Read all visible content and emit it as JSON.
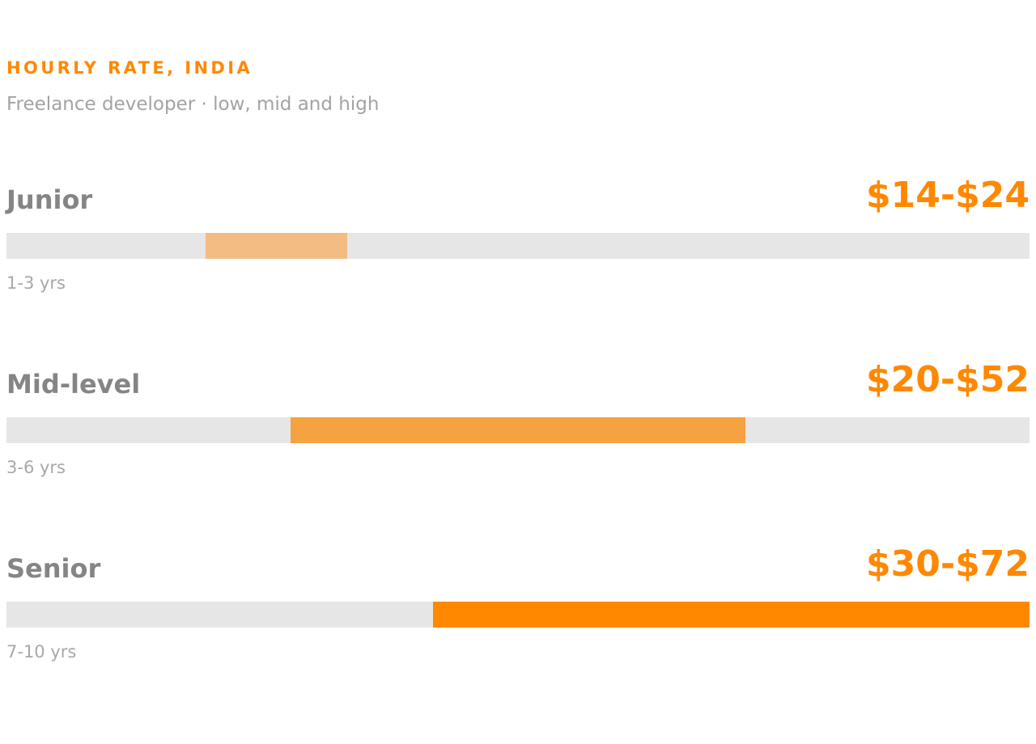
{
  "header": {
    "eyebrow": "HOURLY RATE, INDIA",
    "subtitle": "Freelance developer · low, mid and high"
  },
  "chart_data": {
    "type": "bar",
    "orientation": "horizontal-range",
    "unit": "USD per hour",
    "xlim": [
      0,
      72
    ],
    "grid": false,
    "legend": "none",
    "colors": {
      "track": "#e6e6e6",
      "accent": "#ff8800",
      "label": "#858585",
      "muted": "#a8a8a8"
    },
    "categories": [
      "Junior",
      "Mid-level",
      "Senior"
    ],
    "series": [
      {
        "label": "Junior",
        "range_label": "$14-$24",
        "experience": "1-3 yrs",
        "low": 14,
        "high": 24,
        "color": "#f2bc82"
      },
      {
        "label": "Mid-level",
        "range_label": "$20-$52",
        "experience": "3-6 yrs",
        "low": 20,
        "high": 52,
        "color": "#f5a240"
      },
      {
        "label": "Senior",
        "range_label": "$30-$72",
        "experience": "7-10 yrs",
        "low": 30,
        "high": 72,
        "color": "#ff8800"
      }
    ]
  }
}
